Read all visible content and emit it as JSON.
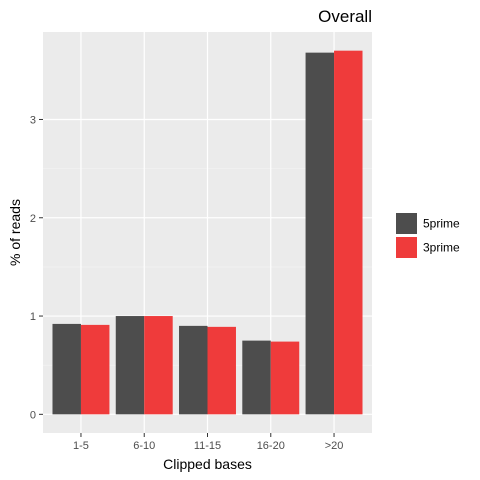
{
  "chart_data": {
    "type": "bar",
    "title": "Overall",
    "xlabel": "Clipped bases",
    "ylabel": "% of reads",
    "categories": [
      "1-5",
      "6-10",
      "11-15",
      "16-20",
      ">20"
    ],
    "series": [
      {
        "name": "5prime",
        "color": "#4d4d4d",
        "values": [
          0.92,
          1.0,
          0.9,
          0.75,
          3.68
        ]
      },
      {
        "name": "3prime",
        "color": "#ef3b3b",
        "values": [
          0.91,
          1.0,
          0.89,
          0.74,
          3.7
        ]
      }
    ],
    "ylim": [
      -0.19,
      3.89
    ],
    "yticks": [
      0,
      1,
      2,
      3
    ],
    "grid": true,
    "legend_position": "right"
  }
}
